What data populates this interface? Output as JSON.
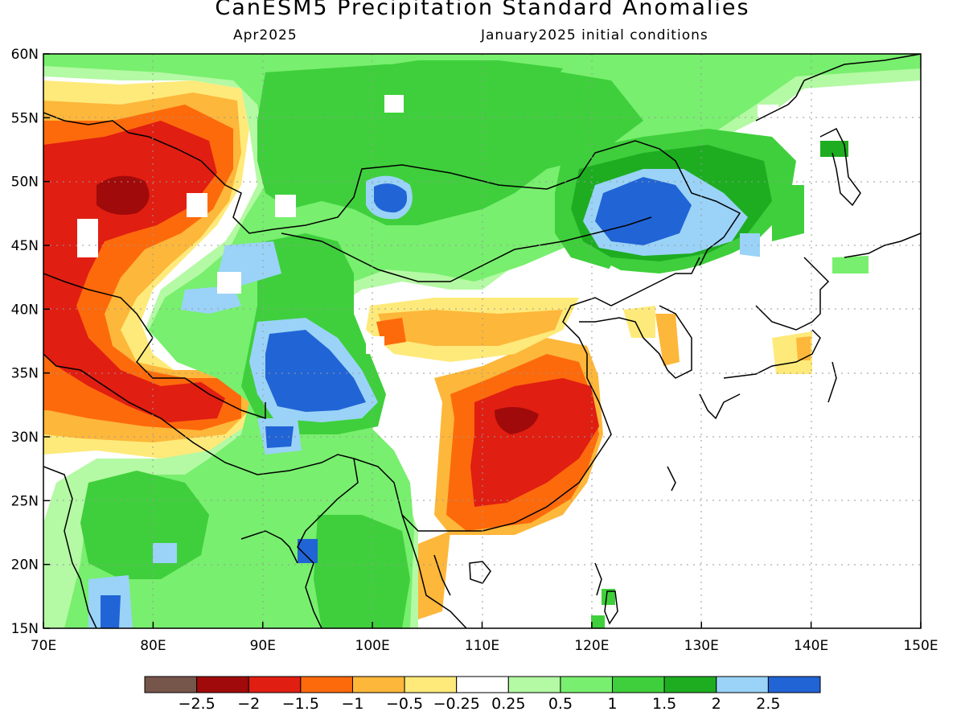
{
  "header": {
    "title": "CanESM5 Precipitation Standard Anomalies",
    "valid": "Apr2025",
    "init": "January2025 initial conditions"
  },
  "map": {
    "lon_range": [
      70,
      150
    ],
    "lat_range": [
      15,
      60
    ],
    "lon_ticks": [
      "70E",
      "80E",
      "90E",
      "100E",
      "110E",
      "120E",
      "130E",
      "140E",
      "150E"
    ],
    "lat_ticks": [
      "15N",
      "20N",
      "25N",
      "30N",
      "35N",
      "40N",
      "45N",
      "50N",
      "55N",
      "60N"
    ],
    "grid": "dotted"
  },
  "colorbar": {
    "colors": [
      "#76554a",
      "#a10a0a",
      "#e01e12",
      "#fd6a0c",
      "#fdb73a",
      "#feea7a",
      "#ffffff",
      "#b4f9a4",
      "#78ef6e",
      "#3fcf3c",
      "#1ead21",
      "#9ad3f7",
      "#2164d6"
    ],
    "labels": [
      "−2.5",
      "−2",
      "−1.5",
      "−1",
      "−0.5",
      "−0.25",
      "0.25",
      "0.5",
      "1",
      "1.5",
      "2",
      "2.5"
    ]
  },
  "palette": {
    "wet1": "#b4f9a4",
    "wet2": "#78ef6e",
    "wet3": "#3fcf3c",
    "wet4": "#1ead21",
    "wet5": "#9ad3f7",
    "wet6": "#2164d6",
    "dry1": "#feea7a",
    "dry2": "#fdb73a",
    "dry3": "#fd6a0c",
    "dry4": "#e01e12",
    "dry5": "#a10a0a"
  }
}
